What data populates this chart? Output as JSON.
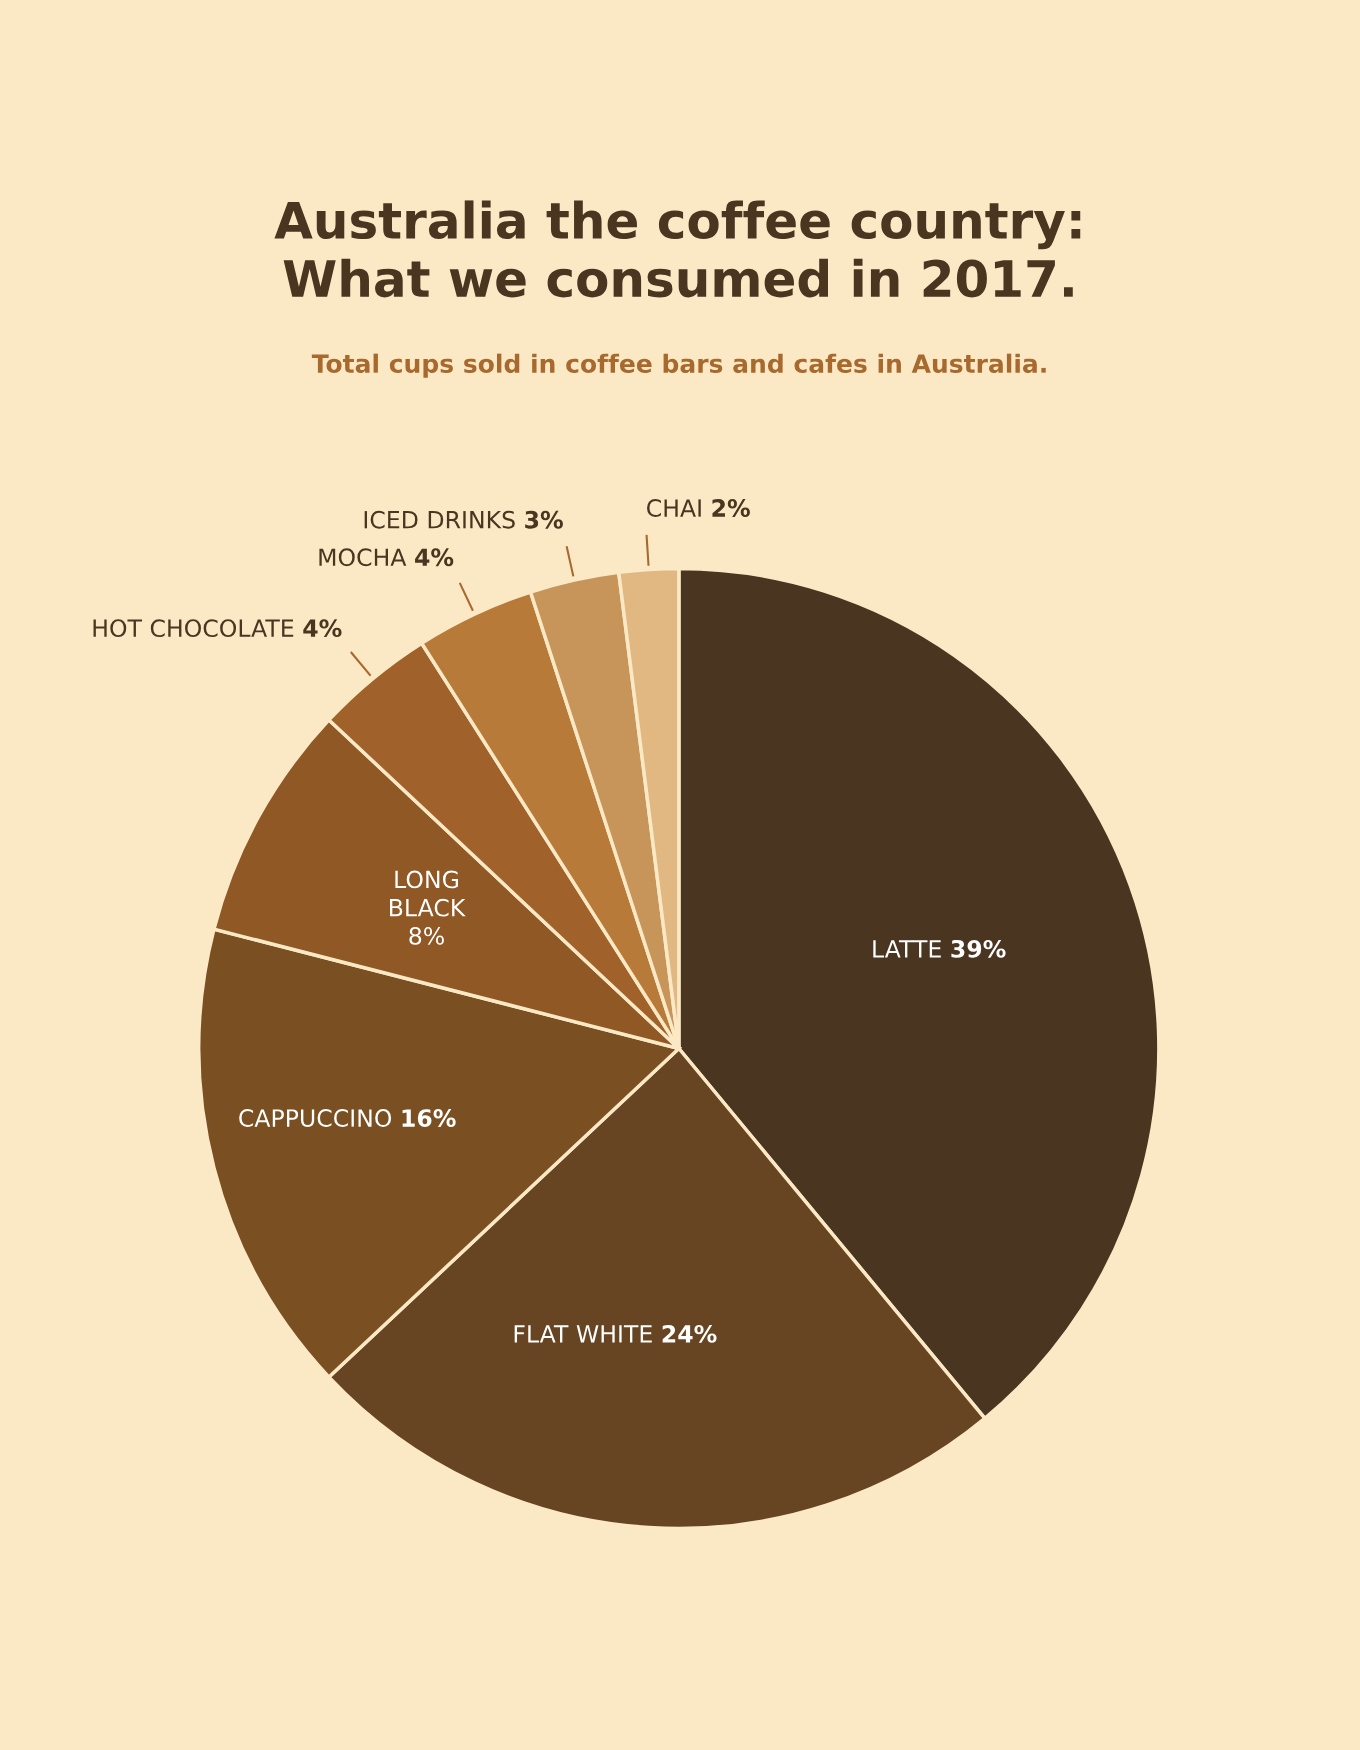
{
  "chart_data": {
    "type": "pie",
    "title": "Australia the coffee country:\nWhat we consumed in 2017.",
    "subtitle": "Total cups sold in coffee bars and cafes in Australia.",
    "categories": [
      "LATTE",
      "FLAT WHITE",
      "CAPPUCCINO",
      "LONG\nBLACK",
      "HOT CHOCOLATE",
      "MOCHA",
      "ICED DRINKS",
      "CHAI"
    ],
    "values": [
      39,
      24,
      16,
      8,
      4,
      4,
      3,
      2
    ],
    "value_labels": [
      "39%",
      "24%",
      "16%",
      "8%",
      "4%",
      "4%",
      "3%",
      "2%"
    ],
    "colors": [
      "#4a3520",
      "#684522",
      "#7a5023",
      "#8f5825",
      "#a0622a",
      "#b77a38",
      "#c79459",
      "#e2b882"
    ],
    "legend": false
  }
}
